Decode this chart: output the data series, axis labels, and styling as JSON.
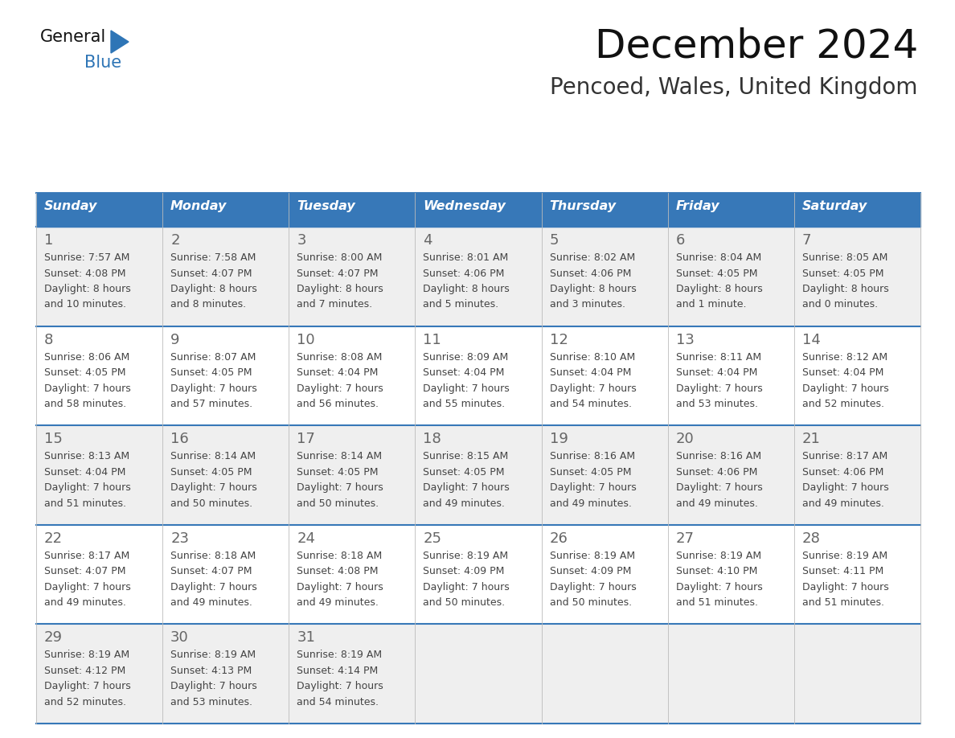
{
  "title": "December 2024",
  "subtitle": "Pencoed, Wales, United Kingdom",
  "header_bg_color": "#3778B8",
  "header_text_color": "#FFFFFF",
  "row_bg_even": "#EFEFEF",
  "row_bg_odd": "#FFFFFF",
  "border_color": "#3778B8",
  "cell_text_color": "#444444",
  "day_num_color": "#666666",
  "title_color": "#111111",
  "subtitle_color": "#333333",
  "logo_black_color": "#111111",
  "logo_blue_color": "#2E75B6",
  "days_of_week": [
    "Sunday",
    "Monday",
    "Tuesday",
    "Wednesday",
    "Thursday",
    "Friday",
    "Saturday"
  ],
  "calendar_data": [
    [
      {
        "day": 1,
        "sunrise": "7:57 AM",
        "sunset": "4:08 PM",
        "daylight_hours": 8,
        "daylight_minutes": 10
      },
      {
        "day": 2,
        "sunrise": "7:58 AM",
        "sunset": "4:07 PM",
        "daylight_hours": 8,
        "daylight_minutes": 8
      },
      {
        "day": 3,
        "sunrise": "8:00 AM",
        "sunset": "4:07 PM",
        "daylight_hours": 8,
        "daylight_minutes": 7
      },
      {
        "day": 4,
        "sunrise": "8:01 AM",
        "sunset": "4:06 PM",
        "daylight_hours": 8,
        "daylight_minutes": 5
      },
      {
        "day": 5,
        "sunrise": "8:02 AM",
        "sunset": "4:06 PM",
        "daylight_hours": 8,
        "daylight_minutes": 3
      },
      {
        "day": 6,
        "sunrise": "8:04 AM",
        "sunset": "4:05 PM",
        "daylight_hours": 8,
        "daylight_minutes": 1
      },
      {
        "day": 7,
        "sunrise": "8:05 AM",
        "sunset": "4:05 PM",
        "daylight_hours": 8,
        "daylight_minutes": 0
      }
    ],
    [
      {
        "day": 8,
        "sunrise": "8:06 AM",
        "sunset": "4:05 PM",
        "daylight_hours": 7,
        "daylight_minutes": 58
      },
      {
        "day": 9,
        "sunrise": "8:07 AM",
        "sunset": "4:05 PM",
        "daylight_hours": 7,
        "daylight_minutes": 57
      },
      {
        "day": 10,
        "sunrise": "8:08 AM",
        "sunset": "4:04 PM",
        "daylight_hours": 7,
        "daylight_minutes": 56
      },
      {
        "day": 11,
        "sunrise": "8:09 AM",
        "sunset": "4:04 PM",
        "daylight_hours": 7,
        "daylight_minutes": 55
      },
      {
        "day": 12,
        "sunrise": "8:10 AM",
        "sunset": "4:04 PM",
        "daylight_hours": 7,
        "daylight_minutes": 54
      },
      {
        "day": 13,
        "sunrise": "8:11 AM",
        "sunset": "4:04 PM",
        "daylight_hours": 7,
        "daylight_minutes": 53
      },
      {
        "day": 14,
        "sunrise": "8:12 AM",
        "sunset": "4:04 PM",
        "daylight_hours": 7,
        "daylight_minutes": 52
      }
    ],
    [
      {
        "day": 15,
        "sunrise": "8:13 AM",
        "sunset": "4:04 PM",
        "daylight_hours": 7,
        "daylight_minutes": 51
      },
      {
        "day": 16,
        "sunrise": "8:14 AM",
        "sunset": "4:05 PM",
        "daylight_hours": 7,
        "daylight_minutes": 50
      },
      {
        "day": 17,
        "sunrise": "8:14 AM",
        "sunset": "4:05 PM",
        "daylight_hours": 7,
        "daylight_minutes": 50
      },
      {
        "day": 18,
        "sunrise": "8:15 AM",
        "sunset": "4:05 PM",
        "daylight_hours": 7,
        "daylight_minutes": 49
      },
      {
        "day": 19,
        "sunrise": "8:16 AM",
        "sunset": "4:05 PM",
        "daylight_hours": 7,
        "daylight_minutes": 49
      },
      {
        "day": 20,
        "sunrise": "8:16 AM",
        "sunset": "4:06 PM",
        "daylight_hours": 7,
        "daylight_minutes": 49
      },
      {
        "day": 21,
        "sunrise": "8:17 AM",
        "sunset": "4:06 PM",
        "daylight_hours": 7,
        "daylight_minutes": 49
      }
    ],
    [
      {
        "day": 22,
        "sunrise": "8:17 AM",
        "sunset": "4:07 PM",
        "daylight_hours": 7,
        "daylight_minutes": 49
      },
      {
        "day": 23,
        "sunrise": "8:18 AM",
        "sunset": "4:07 PM",
        "daylight_hours": 7,
        "daylight_minutes": 49
      },
      {
        "day": 24,
        "sunrise": "8:18 AM",
        "sunset": "4:08 PM",
        "daylight_hours": 7,
        "daylight_minutes": 49
      },
      {
        "day": 25,
        "sunrise": "8:19 AM",
        "sunset": "4:09 PM",
        "daylight_hours": 7,
        "daylight_minutes": 50
      },
      {
        "day": 26,
        "sunrise": "8:19 AM",
        "sunset": "4:09 PM",
        "daylight_hours": 7,
        "daylight_minutes": 50
      },
      {
        "day": 27,
        "sunrise": "8:19 AM",
        "sunset": "4:10 PM",
        "daylight_hours": 7,
        "daylight_minutes": 51
      },
      {
        "day": 28,
        "sunrise": "8:19 AM",
        "sunset": "4:11 PM",
        "daylight_hours": 7,
        "daylight_minutes": 51
      }
    ],
    [
      {
        "day": 29,
        "sunrise": "8:19 AM",
        "sunset": "4:12 PM",
        "daylight_hours": 7,
        "daylight_minutes": 52
      },
      {
        "day": 30,
        "sunrise": "8:19 AM",
        "sunset": "4:13 PM",
        "daylight_hours": 7,
        "daylight_minutes": 53
      },
      {
        "day": 31,
        "sunrise": "8:19 AM",
        "sunset": "4:14 PM",
        "daylight_hours": 7,
        "daylight_minutes": 54
      },
      null,
      null,
      null,
      null
    ]
  ]
}
